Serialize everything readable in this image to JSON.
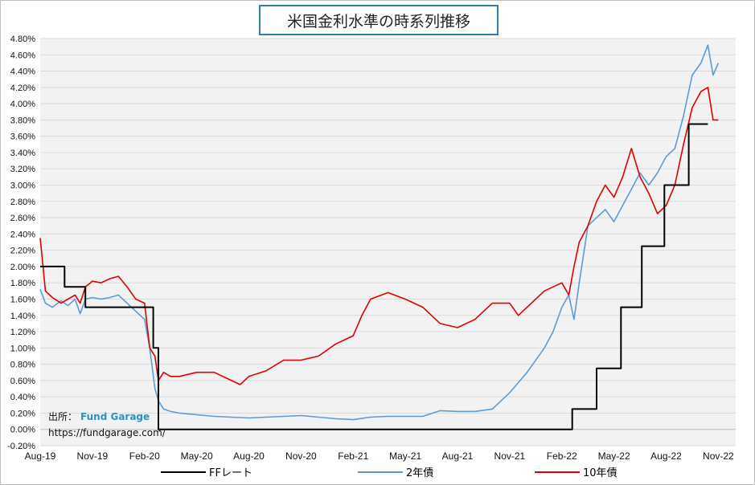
{
  "title": "米国金利水準の時系列推移",
  "source_label": "出所：",
  "source_brand": "Fund Garage",
  "source_url": "https://fundgarage.com/",
  "legend": {
    "ff": "FFレート",
    "y2": "2年債",
    "y10": "10年債"
  },
  "colors": {
    "ff": "#000000",
    "y2": "#5b9bd5",
    "y10": "#e00000",
    "plot_bg": "#f2f2f2",
    "grid": "#d9d9d9"
  },
  "chart_data": {
    "type": "line",
    "title": "米国金利水準の時系列推移",
    "ylim": [
      -0.2,
      4.8
    ],
    "ytick_step": 0.2,
    "xlim": [
      0,
      40
    ],
    "x_unit": "months since Aug-19",
    "x_ticks": [
      {
        "x": 0,
        "label": "Aug-19"
      },
      {
        "x": 3,
        "label": "Nov-19"
      },
      {
        "x": 6,
        "label": "Feb-20"
      },
      {
        "x": 9,
        "label": "May-20"
      },
      {
        "x": 12,
        "label": "Aug-20"
      },
      {
        "x": 15,
        "label": "Nov-20"
      },
      {
        "x": 18,
        "label": "Feb-21"
      },
      {
        "x": 21,
        "label": "May-21"
      },
      {
        "x": 24,
        "label": "Aug-21"
      },
      {
        "x": 27,
        "label": "Nov-21"
      },
      {
        "x": 30,
        "label": "Feb-22"
      },
      {
        "x": 33,
        "label": "May-22"
      },
      {
        "x": 36,
        "label": "Aug-22"
      },
      {
        "x": 39,
        "label": "Nov-22"
      }
    ],
    "series": [
      {
        "name": "FFレート",
        "key": "ff",
        "step": true,
        "points": [
          [
            0,
            2.0
          ],
          [
            1.4,
            2.0
          ],
          [
            1.4,
            1.75
          ],
          [
            2.6,
            1.75
          ],
          [
            2.6,
            1.5
          ],
          [
            6.5,
            1.5
          ],
          [
            6.5,
            1.0
          ],
          [
            6.8,
            1.0
          ],
          [
            6.8,
            0.0
          ],
          [
            30.6,
            0.0
          ],
          [
            30.6,
            0.25
          ],
          [
            32.0,
            0.25
          ],
          [
            32.0,
            0.75
          ],
          [
            33.4,
            0.75
          ],
          [
            33.4,
            1.5
          ],
          [
            34.6,
            1.5
          ],
          [
            34.6,
            2.25
          ],
          [
            35.9,
            2.25
          ],
          [
            35.9,
            3.0
          ],
          [
            37.3,
            3.0
          ],
          [
            37.3,
            3.75
          ],
          [
            38.4,
            3.75
          ]
        ]
      },
      {
        "name": "2年債",
        "key": "y2",
        "points": [
          [
            0,
            1.72
          ],
          [
            0.3,
            1.55
          ],
          [
            0.7,
            1.5
          ],
          [
            1.2,
            1.58
          ],
          [
            1.6,
            1.52
          ],
          [
            2.0,
            1.6
          ],
          [
            2.3,
            1.42
          ],
          [
            2.6,
            1.6
          ],
          [
            3.0,
            1.62
          ],
          [
            3.5,
            1.6
          ],
          [
            4.0,
            1.62
          ],
          [
            4.5,
            1.65
          ],
          [
            5.0,
            1.55
          ],
          [
            5.5,
            1.45
          ],
          [
            6.0,
            1.35
          ],
          [
            6.3,
            1.0
          ],
          [
            6.6,
            0.5
          ],
          [
            6.8,
            0.35
          ],
          [
            7.1,
            0.25
          ],
          [
            7.5,
            0.22
          ],
          [
            8.0,
            0.2
          ],
          [
            9.0,
            0.18
          ],
          [
            10.0,
            0.16
          ],
          [
            11.0,
            0.15
          ],
          [
            12.0,
            0.14
          ],
          [
            13.0,
            0.15
          ],
          [
            14.0,
            0.16
          ],
          [
            15.0,
            0.17
          ],
          [
            16.0,
            0.15
          ],
          [
            17.0,
            0.13
          ],
          [
            18.0,
            0.12
          ],
          [
            19.0,
            0.15
          ],
          [
            20.0,
            0.16
          ],
          [
            21.0,
            0.16
          ],
          [
            22.0,
            0.16
          ],
          [
            23.0,
            0.23
          ],
          [
            24.0,
            0.22
          ],
          [
            25.0,
            0.22
          ],
          [
            26.0,
            0.25
          ],
          [
            27.0,
            0.45
          ],
          [
            28.0,
            0.7
          ],
          [
            29.0,
            1.0
          ],
          [
            29.5,
            1.2
          ],
          [
            30.0,
            1.5
          ],
          [
            30.4,
            1.65
          ],
          [
            30.7,
            1.35
          ],
          [
            31.0,
            1.8
          ],
          [
            31.5,
            2.5
          ],
          [
            32.0,
            2.6
          ],
          [
            32.5,
            2.7
          ],
          [
            33.0,
            2.55
          ],
          [
            33.5,
            2.75
          ],
          [
            34.0,
            2.95
          ],
          [
            34.5,
            3.15
          ],
          [
            35.0,
            3.0
          ],
          [
            35.5,
            3.15
          ],
          [
            36.0,
            3.35
          ],
          [
            36.5,
            3.45
          ],
          [
            37.0,
            3.85
          ],
          [
            37.5,
            4.35
          ],
          [
            38.0,
            4.5
          ],
          [
            38.4,
            4.72
          ],
          [
            38.7,
            4.35
          ],
          [
            39.0,
            4.5
          ]
        ]
      },
      {
        "name": "10年債",
        "key": "y10",
        "points": [
          [
            0,
            2.35
          ],
          [
            0.3,
            1.7
          ],
          [
            0.7,
            1.62
          ],
          [
            1.2,
            1.55
          ],
          [
            1.6,
            1.6
          ],
          [
            2.0,
            1.65
          ],
          [
            2.3,
            1.55
          ],
          [
            2.6,
            1.75
          ],
          [
            3.0,
            1.82
          ],
          [
            3.5,
            1.8
          ],
          [
            4.0,
            1.85
          ],
          [
            4.5,
            1.88
          ],
          [
            5.0,
            1.75
          ],
          [
            5.5,
            1.6
          ],
          [
            6.0,
            1.55
          ],
          [
            6.3,
            1.0
          ],
          [
            6.6,
            0.9
          ],
          [
            6.8,
            0.6
          ],
          [
            7.1,
            0.7
          ],
          [
            7.5,
            0.65
          ],
          [
            8.0,
            0.65
          ],
          [
            9.0,
            0.7
          ],
          [
            10.0,
            0.7
          ],
          [
            11.0,
            0.6
          ],
          [
            11.5,
            0.55
          ],
          [
            12.0,
            0.65
          ],
          [
            13.0,
            0.72
          ],
          [
            14.0,
            0.85
          ],
          [
            15.0,
            0.85
          ],
          [
            16.0,
            0.9
          ],
          [
            17.0,
            1.05
          ],
          [
            18.0,
            1.15
          ],
          [
            18.5,
            1.4
          ],
          [
            19.0,
            1.6
          ],
          [
            20.0,
            1.68
          ],
          [
            21.0,
            1.6
          ],
          [
            22.0,
            1.5
          ],
          [
            23.0,
            1.3
          ],
          [
            24.0,
            1.25
          ],
          [
            25.0,
            1.35
          ],
          [
            26.0,
            1.55
          ],
          [
            27.0,
            1.55
          ],
          [
            27.5,
            1.4
          ],
          [
            28.0,
            1.5
          ],
          [
            29.0,
            1.7
          ],
          [
            30.0,
            1.8
          ],
          [
            30.4,
            1.65
          ],
          [
            30.7,
            2.0
          ],
          [
            31.0,
            2.3
          ],
          [
            31.5,
            2.5
          ],
          [
            32.0,
            2.8
          ],
          [
            32.5,
            3.0
          ],
          [
            33.0,
            2.85
          ],
          [
            33.5,
            3.1
          ],
          [
            34.0,
            3.45
          ],
          [
            34.5,
            3.1
          ],
          [
            35.0,
            2.9
          ],
          [
            35.5,
            2.65
          ],
          [
            36.0,
            2.75
          ],
          [
            36.5,
            3.0
          ],
          [
            37.0,
            3.5
          ],
          [
            37.5,
            3.95
          ],
          [
            38.0,
            4.15
          ],
          [
            38.4,
            4.2
          ],
          [
            38.7,
            3.8
          ],
          [
            39.0,
            3.8
          ]
        ]
      }
    ]
  }
}
